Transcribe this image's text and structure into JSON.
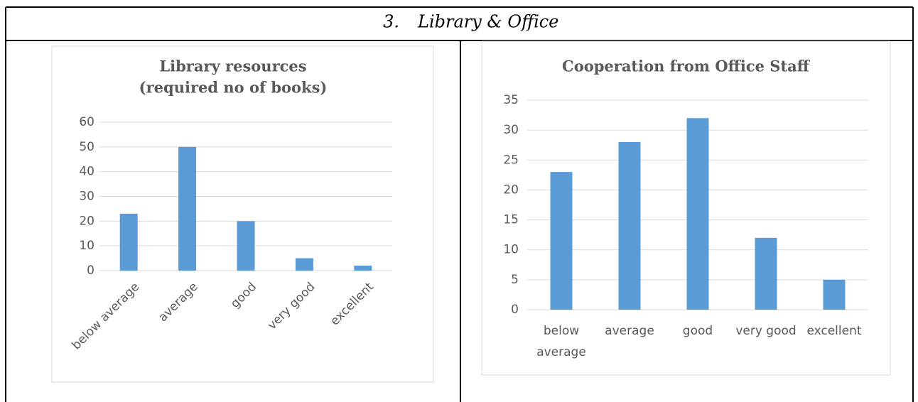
{
  "header": {
    "number": "3.",
    "title": "Library & Office"
  },
  "chart_data": [
    {
      "type": "bar",
      "title": [
        "Library resources",
        "(required no of books)"
      ],
      "categories": [
        "below average",
        "average",
        "good",
        "very good",
        "excellent"
      ],
      "values": [
        23,
        50,
        20,
        5,
        2
      ],
      "color": "#5b9bd5",
      "ylim": [
        0,
        60
      ],
      "yticks": [
        0,
        10,
        20,
        30,
        40,
        50,
        60
      ],
      "grid": true
    },
    {
      "type": "bar",
      "title": [
        "Cooperation from Office Staff"
      ],
      "categories": [
        "below average",
        "average",
        "good",
        "very good",
        "excellent"
      ],
      "values": [
        23,
        28,
        32,
        12,
        5
      ],
      "color": "#5b9bd5",
      "ylim": [
        0,
        35
      ],
      "yticks": [
        0,
        5,
        10,
        15,
        20,
        25,
        30,
        35
      ],
      "grid": true
    }
  ]
}
